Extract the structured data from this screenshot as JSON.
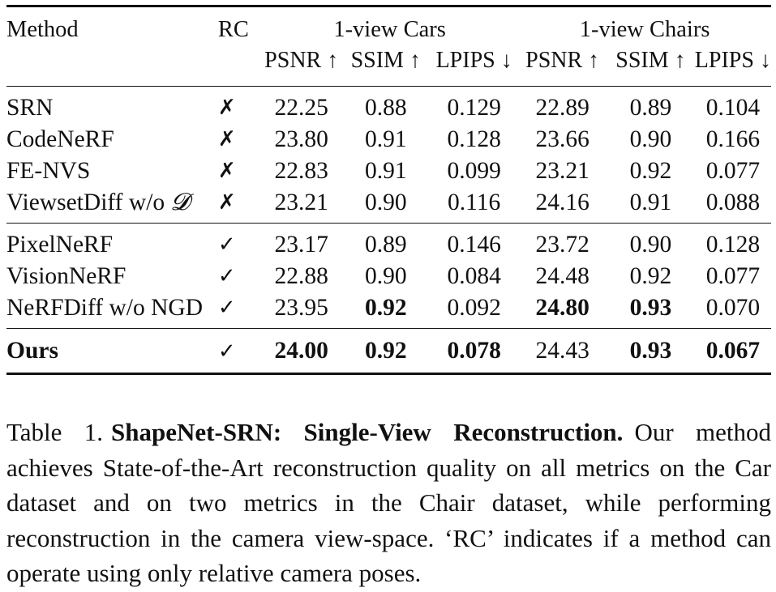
{
  "table": {
    "headers": {
      "method": "Method",
      "rc": "RC",
      "group_cars": "1-view Cars",
      "group_chairs": "1-view Chairs",
      "metrics": [
        "PSNR ↑",
        "SSIM ↑",
        "LPIPS ↓",
        "PSNR ↑",
        "SSIM ↑",
        "LPIPS ↓"
      ]
    },
    "section1": [
      {
        "method": "SRN",
        "rc": "✗",
        "values": [
          "22.25",
          "0.88",
          "0.129",
          "22.89",
          "0.89",
          "0.104"
        ]
      },
      {
        "method": "CodeNeRF",
        "rc": "✗",
        "values": [
          "23.80",
          "0.91",
          "0.128",
          "23.66",
          "0.90",
          "0.166"
        ]
      },
      {
        "method": "FE-NVS",
        "rc": "✗",
        "values": [
          "22.83",
          "0.91",
          "0.099",
          "23.21",
          "0.92",
          "0.077"
        ]
      },
      {
        "method_prefix": "ViewsetDiff w/o ",
        "method_symbol": "𝓓",
        "rc": "✗",
        "values": [
          "23.21",
          "0.90",
          "0.116",
          "24.16",
          "0.91",
          "0.088"
        ]
      }
    ],
    "section2": [
      {
        "method": "PixelNeRF",
        "rc": "✓",
        "values": [
          "23.17",
          "0.89",
          "0.146",
          "23.72",
          "0.90",
          "0.128"
        ]
      },
      {
        "method": "VisionNeRF",
        "rc": "✓",
        "values": [
          "22.88",
          "0.90",
          "0.084",
          "24.48",
          "0.92",
          "0.077"
        ]
      },
      {
        "method": "NeRFDiff w/o NGD",
        "rc": "✓",
        "values": [
          "23.95",
          "0.92",
          "0.092",
          "24.80",
          "0.93",
          "0.070"
        ]
      }
    ],
    "ours": {
      "method": "Ours",
      "rc": "✓",
      "values": [
        "24.00",
        "0.92",
        "0.078",
        "24.43",
        "0.93",
        "0.067"
      ]
    }
  },
  "caption": {
    "label": "Table 1.",
    "title": "ShapeNet-SRN: Single-View Reconstruction.",
    "text": "Our method achieves State-of-the-Art reconstruction quality on all metrics on the Car dataset and on two metrics in the Chair dataset, while performing reconstruction in the camera view-space. ‘RC’ indicates if a method can operate using only relative camera poses."
  }
}
